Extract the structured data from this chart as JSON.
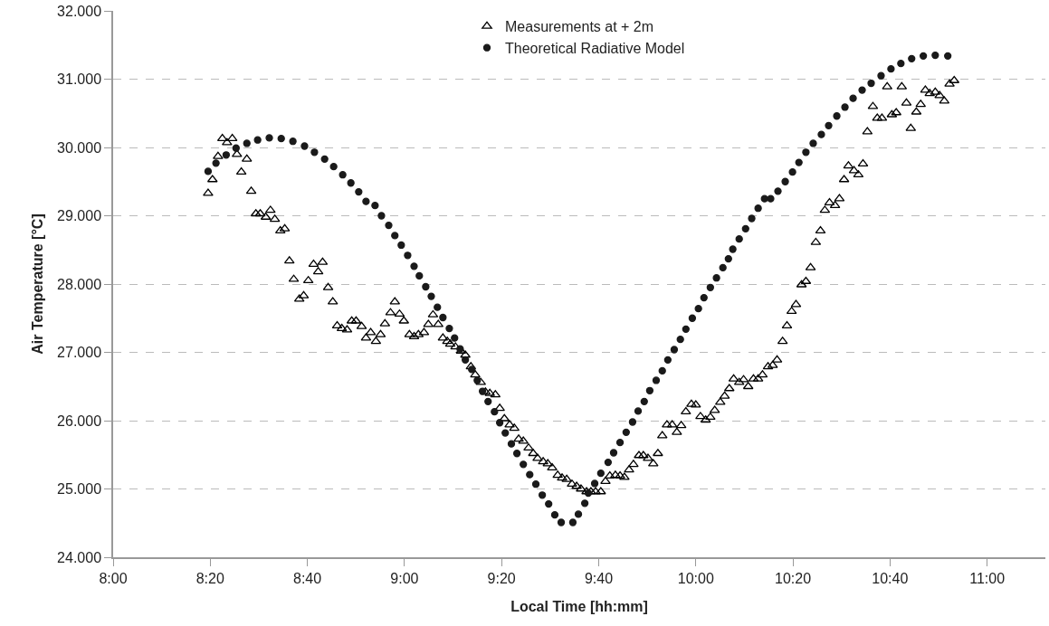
{
  "chart_data": {
    "type": "scatter",
    "xlabel": "Local Time [hh:mm]",
    "ylabel": "Air Temperature [°C]",
    "xlim": [
      8,
      11.2
    ],
    "xticks": [
      {
        "value": 8,
        "label": "8:00"
      },
      {
        "value": 8.3333,
        "label": "8:20"
      },
      {
        "value": 8.6667,
        "label": "8:40"
      },
      {
        "value": 9,
        "label": "9:00"
      },
      {
        "value": 9.3333,
        "label": "9:20"
      },
      {
        "value": 9.6667,
        "label": "9:40"
      },
      {
        "value": 10,
        "label": "10:00"
      },
      {
        "value": 10.3333,
        "label": "10:20"
      },
      {
        "value": 10.6667,
        "label": "10:40"
      },
      {
        "value": 11,
        "label": "11:00"
      }
    ],
    "ylim": [
      24,
      32
    ],
    "yticks": [
      {
        "value": 24,
        "label": "24.000"
      },
      {
        "value": 25,
        "label": "25.000"
      },
      {
        "value": 26,
        "label": "26.000"
      },
      {
        "value": 27,
        "label": "27.000"
      },
      {
        "value": 28,
        "label": "28.000"
      },
      {
        "value": 29,
        "label": "29.000"
      },
      {
        "value": 30,
        "label": "30.000"
      },
      {
        "value": 31,
        "label": "31.000"
      },
      {
        "value": 32,
        "label": "32.000"
      }
    ],
    "grid": "y",
    "legend": "top",
    "series": [
      {
        "name": "Measurements at + 2m",
        "color": "#000000",
        "marker": "triangle",
        "x": [
          8.326,
          8.341,
          8.36,
          8.375,
          8.391,
          8.409,
          8.425,
          8.44,
          8.459,
          8.474,
          8.49,
          8.505,
          8.524,
          8.54,
          8.555,
          8.574,
          8.589,
          8.605,
          8.62,
          8.639,
          8.654,
          8.67,
          8.688,
          8.704,
          8.719,
          8.738,
          8.754,
          8.769,
          8.785,
          8.803,
          8.819,
          8.834,
          8.853,
          8.868,
          8.884,
          8.902,
          8.918,
          8.933,
          8.952,
          8.967,
          8.983,
          8.998,
          9.017,
          9.033,
          9.048,
          9.067,
          9.082,
          9.098,
          9.116,
          9.132,
          9.147,
          9.157,
          9.175,
          9.194,
          9.209,
          9.228,
          9.243,
          9.262,
          9.278,
          9.293,
          9.312,
          9.327,
          9.343,
          9.361,
          9.377,
          9.392,
          9.408,
          9.426,
          9.442,
          9.457,
          9.476,
          9.492,
          9.507,
          9.526,
          9.541,
          9.557,
          9.575,
          9.591,
          9.606,
          9.625,
          9.64,
          9.656,
          9.674,
          9.69,
          9.705,
          9.724,
          9.74,
          9.755,
          9.771,
          9.786,
          9.805,
          9.82,
          9.836,
          9.854,
          9.87,
          9.885,
          9.901,
          9.919,
          9.935,
          9.95,
          9.966,
          9.985,
          10.0,
          10.016,
          10.034,
          10.05,
          10.065,
          10.084,
          10.099,
          10.115,
          10.13,
          10.149,
          10.164,
          10.18,
          10.198,
          10.214,
          10.229,
          10.248,
          10.264,
          10.279,
          10.298,
          10.313,
          10.329,
          10.344,
          10.363,
          10.378,
          10.394,
          10.412,
          10.428,
          10.443,
          10.459,
          10.478,
          10.493,
          10.509,
          10.524,
          10.543,
          10.558,
          10.574,
          10.589,
          10.608,
          10.623,
          10.639,
          10.657,
          10.673,
          10.688,
          10.707,
          10.723,
          10.738,
          10.757,
          10.772,
          10.788,
          10.803,
          10.822,
          10.837,
          10.853,
          10.871,
          10.887
        ],
        "values": [
          29.33,
          29.53,
          29.87,
          30.13,
          30.07,
          30.13,
          29.9,
          29.64,
          29.83,
          29.36,
          29.03,
          29.03,
          28.98,
          29.08,
          28.95,
          28.78,
          28.81,
          28.34,
          28.07,
          27.78,
          27.83,
          28.05,
          28.29,
          28.18,
          28.32,
          27.95,
          27.74,
          27.39,
          27.35,
          27.33,
          27.46,
          27.46,
          27.38,
          27.21,
          27.29,
          27.16,
          27.26,
          27.42,
          27.58,
          27.74,
          27.56,
          27.46,
          27.26,
          27.23,
          27.26,
          27.29,
          27.41,
          27.55,
          27.41,
          27.21,
          27.16,
          27.12,
          27.08,
          27.02,
          26.96,
          26.79,
          26.67,
          26.56,
          26.42,
          26.4,
          26.38,
          26.18,
          26.03,
          25.94,
          25.89,
          25.73,
          25.7,
          25.6,
          25.52,
          25.45,
          25.4,
          25.37,
          25.31,
          25.2,
          25.16,
          25.14,
          25.07,
          25.04,
          25.0,
          24.96,
          24.96,
          24.96,
          24.96,
          25.11,
          25.19,
          25.2,
          25.19,
          25.17,
          25.28,
          25.36,
          25.49,
          25.49,
          25.45,
          25.37,
          25.52,
          25.78,
          25.94,
          25.94,
          25.83,
          25.93,
          26.13,
          26.24,
          26.23,
          26.06,
          26.01,
          26.05,
          26.15,
          26.27,
          26.36,
          26.47,
          26.61,
          26.56,
          26.6,
          26.5,
          26.61,
          26.61,
          26.67,
          26.79,
          26.81,
          26.89,
          27.16,
          27.39,
          27.6,
          27.7,
          27.99,
          28.04,
          28.24,
          28.61,
          28.78,
          29.08,
          29.19,
          29.15,
          29.25,
          29.53,
          29.73,
          29.66,
          29.6,
          29.76,
          30.23,
          30.6,
          30.43,
          30.43,
          30.89,
          30.48,
          30.51,
          30.89,
          30.65,
          30.28,
          30.52,
          30.63,
          30.84,
          30.79,
          30.81,
          30.76,
          30.68,
          30.93,
          30.98
        ]
      },
      {
        "name": "Theoretical Radiative Model",
        "color": "#1a1a1a",
        "marker": "circle",
        "x": [
          8.326,
          8.353,
          8.388,
          8.422,
          8.459,
          8.496,
          8.536,
          8.577,
          8.617,
          8.657,
          8.691,
          8.726,
          8.757,
          8.788,
          8.816,
          8.843,
          8.868,
          8.899,
          8.921,
          8.946,
          8.967,
          8.989,
          9.011,
          9.033,
          9.051,
          9.073,
          9.092,
          9.113,
          9.132,
          9.154,
          9.172,
          9.191,
          9.209,
          9.231,
          9.25,
          9.268,
          9.287,
          9.309,
          9.327,
          9.346,
          9.367,
          9.386,
          9.408,
          9.43,
          9.451,
          9.473,
          9.495,
          9.516,
          9.538,
          9.578,
          9.597,
          9.619,
          9.631,
          9.653,
          9.674,
          9.699,
          9.718,
          9.74,
          9.761,
          9.783,
          9.802,
          9.823,
          9.842,
          9.864,
          9.885,
          9.904,
          9.926,
          9.947,
          9.966,
          9.988,
          10.009,
          10.028,
          10.05,
          10.071,
          10.093,
          10.112,
          10.127,
          10.149,
          10.171,
          10.192,
          10.214,
          10.236,
          10.257,
          10.282,
          10.307,
          10.332,
          10.354,
          10.378,
          10.403,
          10.431,
          10.456,
          10.484,
          10.512,
          10.54,
          10.571,
          10.602,
          10.636,
          10.67,
          10.704,
          10.741,
          10.781,
          10.822,
          10.865
        ],
        "values": [
          29.65,
          29.77,
          29.89,
          29.99,
          30.06,
          30.11,
          30.14,
          30.13,
          30.09,
          30.02,
          29.93,
          29.83,
          29.72,
          29.6,
          29.48,
          29.35,
          29.21,
          29.15,
          29.0,
          28.86,
          28.71,
          28.57,
          28.42,
          28.26,
          28.12,
          27.96,
          27.82,
          27.66,
          27.51,
          27.35,
          27.21,
          27.05,
          26.89,
          26.75,
          26.59,
          26.43,
          26.28,
          26.13,
          25.97,
          25.82,
          25.66,
          25.52,
          25.36,
          25.21,
          25.07,
          24.91,
          24.78,
          24.62,
          24.51,
          24.51,
          24.63,
          24.79,
          24.94,
          25.08,
          25.23,
          25.39,
          25.53,
          25.68,
          25.83,
          25.98,
          26.14,
          26.28,
          26.44,
          26.59,
          26.73,
          26.89,
          27.04,
          27.19,
          27.34,
          27.5,
          27.64,
          27.8,
          27.95,
          28.09,
          28.24,
          28.37,
          28.51,
          28.66,
          28.81,
          28.96,
          29.11,
          29.25,
          29.25,
          29.36,
          29.5,
          29.64,
          29.78,
          29.93,
          30.06,
          30.19,
          30.32,
          30.46,
          30.59,
          30.72,
          30.84,
          30.94,
          31.05,
          31.15,
          31.23,
          31.3,
          31.34,
          31.35,
          31.34
        ]
      }
    ]
  }
}
